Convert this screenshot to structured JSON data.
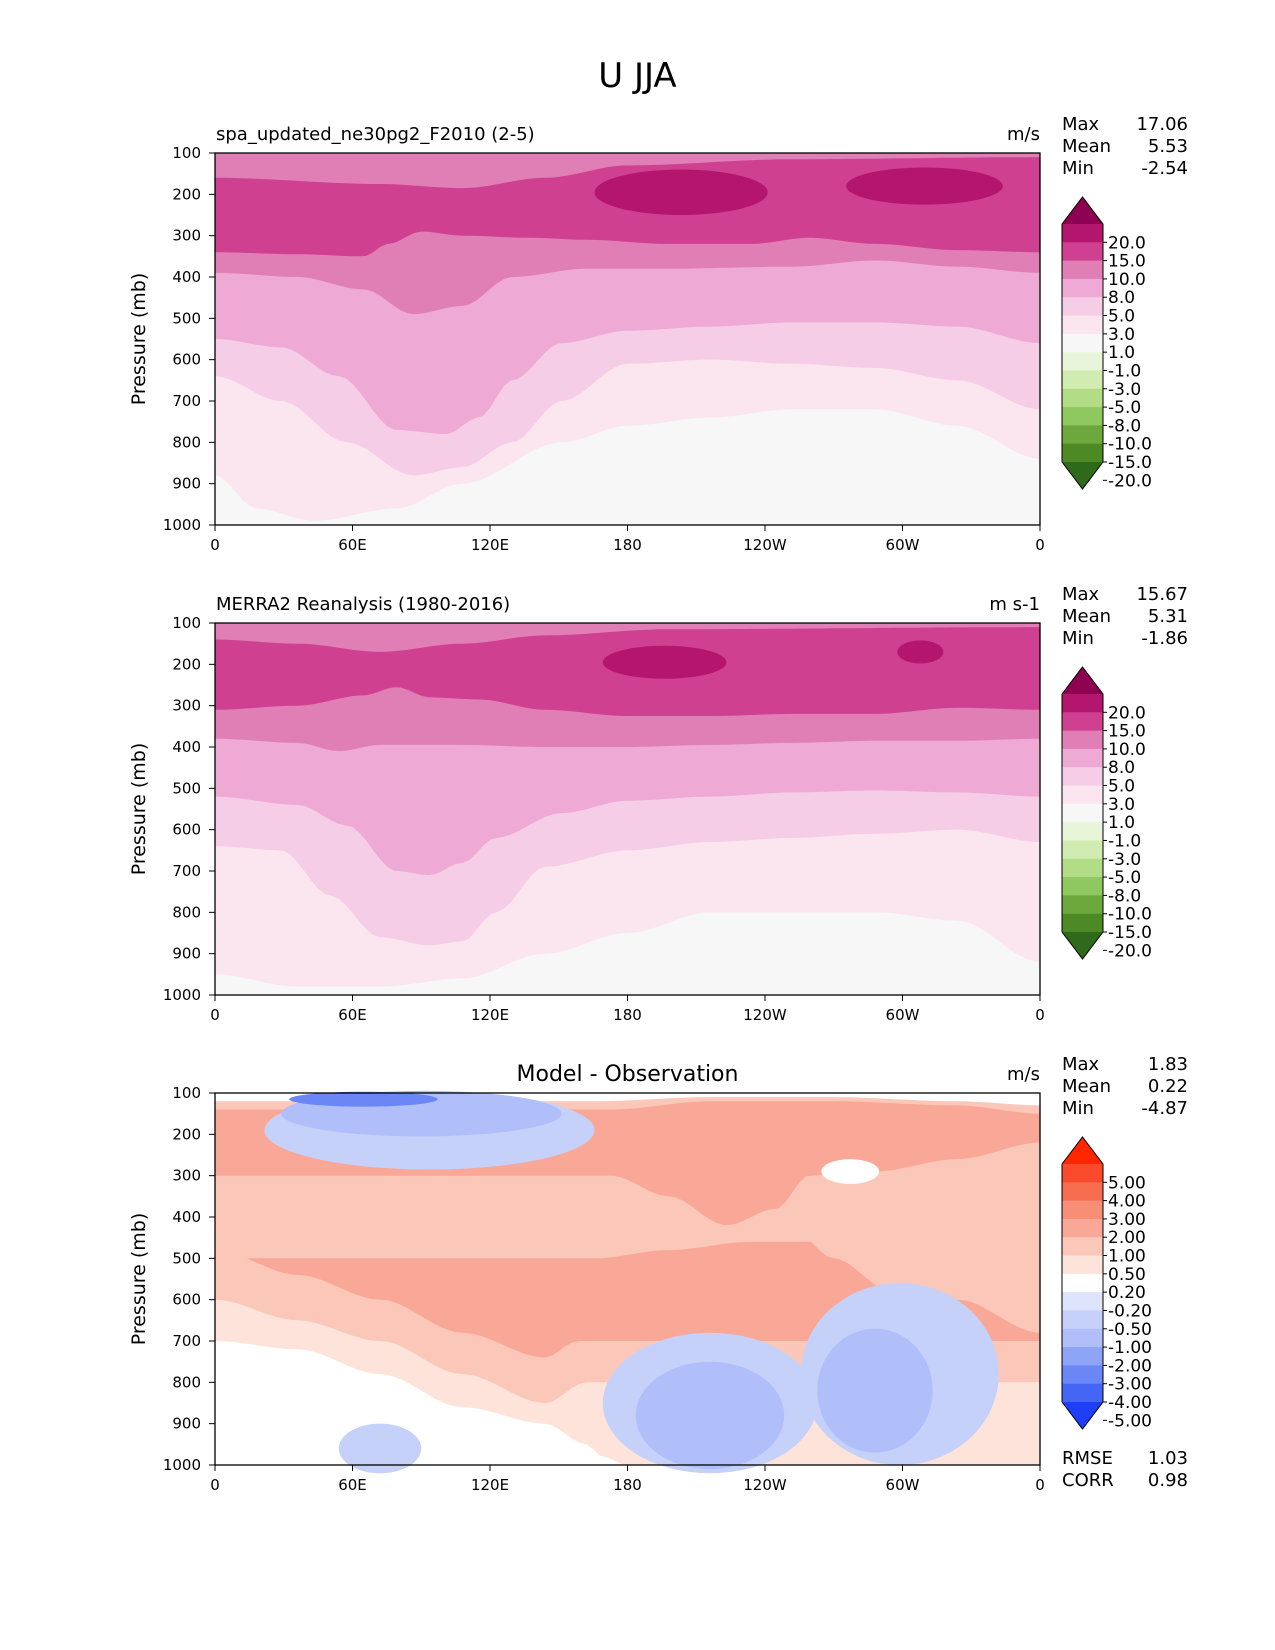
{
  "title": "U JJA",
  "chart_data": [
    {
      "type": "heatmap",
      "title": "spa_updated_ne30pg2_F2010 (2-5)",
      "units": "m/s",
      "ylabel": "Pressure (mb)",
      "xlabel": "",
      "x_ticks": [
        "0",
        "60E",
        "120E",
        "180",
        "120W",
        "60W",
        "0"
      ],
      "y_ticks": [
        "100",
        "200",
        "300",
        "400",
        "500",
        "600",
        "700",
        "800",
        "900",
        "1000"
      ],
      "ylim": [
        100,
        1000
      ],
      "stats": [
        {
          "label": "Max",
          "value": "17.06"
        },
        {
          "label": "Mean",
          "value": "5.53"
        },
        {
          "label": "Min",
          "value": "-2.54"
        }
      ],
      "colorbar": {
        "labels": [
          "20.0",
          "15.0",
          "10.0",
          "8.0",
          "5.0",
          "3.0",
          "1.0",
          "-1.0",
          "-3.0",
          "-5.0",
          "-8.0",
          "-10.0",
          "-15.0",
          "-20.0"
        ],
        "colors": [
          "#8e0152",
          "#b5166d",
          "#cf4090",
          "#e07fb5",
          "#eeaad4",
          "#f6cde6",
          "#fbe6f0",
          "#f7f7f7",
          "#e9f5d9",
          "#d1ecb0",
          "#b2dd86",
          "#8ec85f",
          "#6da83d",
          "#4d8a26",
          "#2e6a1a"
        ]
      }
    },
    {
      "type": "heatmap",
      "title": "MERRA2 Reanalysis (1980-2016)",
      "units": "m s-1",
      "ylabel": "Pressure (mb)",
      "xlabel": "",
      "x_ticks": [
        "0",
        "60E",
        "120E",
        "180",
        "120W",
        "60W",
        "0"
      ],
      "y_ticks": [
        "100",
        "200",
        "300",
        "400",
        "500",
        "600",
        "700",
        "800",
        "900",
        "1000"
      ],
      "ylim": [
        100,
        1000
      ],
      "stats": [
        {
          "label": "Max",
          "value": "15.67"
        },
        {
          "label": "Mean",
          "value": "5.31"
        },
        {
          "label": "Min",
          "value": "-1.86"
        }
      ],
      "colorbar": {
        "labels": [
          "20.0",
          "15.0",
          "10.0",
          "8.0",
          "5.0",
          "3.0",
          "1.0",
          "-1.0",
          "-3.0",
          "-5.0",
          "-8.0",
          "-10.0",
          "-15.0",
          "-20.0"
        ],
        "colors": [
          "#8e0152",
          "#b5166d",
          "#cf4090",
          "#e07fb5",
          "#eeaad4",
          "#f6cde6",
          "#fbe6f0",
          "#f7f7f7",
          "#e9f5d9",
          "#d1ecb0",
          "#b2dd86",
          "#8ec85f",
          "#6da83d",
          "#4d8a26",
          "#2e6a1a"
        ]
      }
    },
    {
      "type": "heatmap",
      "title": "Model - Observation",
      "units": "m/s",
      "ylabel": "Pressure (mb)",
      "xlabel": "",
      "x_ticks": [
        "0",
        "60E",
        "120E",
        "180",
        "120W",
        "60W",
        "0"
      ],
      "y_ticks": [
        "100",
        "200",
        "300",
        "400",
        "500",
        "600",
        "700",
        "800",
        "900",
        "1000"
      ],
      "ylim": [
        100,
        1000
      ],
      "stats": [
        {
          "label": "Max",
          "value": "1.83"
        },
        {
          "label": "Mean",
          "value": "0.22"
        },
        {
          "label": "Min",
          "value": "-4.87"
        }
      ],
      "extra_stats": [
        {
          "label": "RMSE",
          "value": "1.03"
        },
        {
          "label": "CORR",
          "value": "0.98"
        }
      ],
      "colorbar": {
        "labels": [
          "5.00",
          "4.00",
          "3.00",
          "2.00",
          "1.00",
          "0.50",
          "0.20",
          "-0.20",
          "-0.50",
          "-1.00",
          "-2.00",
          "-3.00",
          "-4.00",
          "-5.00"
        ],
        "colors": [
          "#ff2600",
          "#fa4a2c",
          "#f76d50",
          "#f78e75",
          "#f9a898",
          "#fbc7b9",
          "#fde3da",
          "#ffffff",
          "#dde4fb",
          "#c6d1fa",
          "#b0bffa",
          "#8ea4f7",
          "#6b86f5",
          "#4566f5",
          "#1e3ff7"
        ]
      }
    }
  ]
}
